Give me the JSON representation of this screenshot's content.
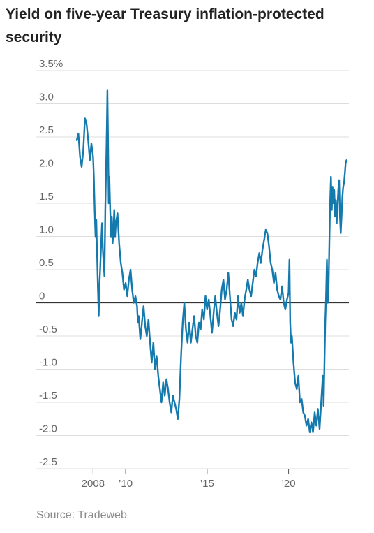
{
  "title": "Yield on five-year Treasury inflation-protected security",
  "source": "Source: Tradeweb",
  "colors": {
    "line": "#1479ad",
    "grid": "#dddddd",
    "zero": "#333333"
  },
  "chart_data": {
    "type": "line",
    "title": "Yield on five-year Treasury inflation-protected security",
    "xlabel": "",
    "ylabel": "",
    "xlim": [
      2006.4,
      2023.7
    ],
    "ylim": [
      -2.5,
      3.5
    ],
    "grid": true,
    "y_ticks": [
      {
        "value": 3.5,
        "label": "3.5%"
      },
      {
        "value": 3.0,
        "label": "3.0"
      },
      {
        "value": 2.5,
        "label": "2.5"
      },
      {
        "value": 2.0,
        "label": "2.0"
      },
      {
        "value": 1.5,
        "label": "1.5"
      },
      {
        "value": 1.0,
        "label": "1.0"
      },
      {
        "value": 0.5,
        "label": "0.5"
      },
      {
        "value": 0,
        "label": "0"
      },
      {
        "value": -0.5,
        "label": "-0.5"
      },
      {
        "value": -1.0,
        "label": "-1.0"
      },
      {
        "value": -1.5,
        "label": "-1.5"
      },
      {
        "value": -2.0,
        "label": "-2.0"
      },
      {
        "value": -2.5,
        "label": "-2.5"
      }
    ],
    "x_ticks": [
      {
        "value": 2008,
        "label": "2008"
      },
      {
        "value": 2010,
        "label": "’10"
      },
      {
        "value": 2015,
        "label": "’15"
      },
      {
        "value": 2020,
        "label": "’20"
      }
    ],
    "series": [
      {
        "points": [
          [
            2007.0,
            2.45
          ],
          [
            2007.1,
            2.55
          ],
          [
            2007.2,
            2.2
          ],
          [
            2007.3,
            2.05
          ],
          [
            2007.4,
            2.3
          ],
          [
            2007.5,
            2.78
          ],
          [
            2007.6,
            2.7
          ],
          [
            2007.7,
            2.45
          ],
          [
            2007.8,
            2.15
          ],
          [
            2007.9,
            2.4
          ],
          [
            2008.0,
            2.2
          ],
          [
            2008.05,
            1.9
          ],
          [
            2008.1,
            1.4
          ],
          [
            2008.15,
            1.0
          ],
          [
            2008.2,
            1.25
          ],
          [
            2008.25,
            0.7
          ],
          [
            2008.3,
            0.2
          ],
          [
            2008.35,
            -0.2
          ],
          [
            2008.4,
            0.3
          ],
          [
            2008.45,
            0.6
          ],
          [
            2008.5,
            0.9
          ],
          [
            2008.55,
            1.2
          ],
          [
            2008.6,
            0.8
          ],
          [
            2008.65,
            0.6
          ],
          [
            2008.7,
            0.4
          ],
          [
            2008.75,
            1.4
          ],
          [
            2008.8,
            2.0
          ],
          [
            2008.85,
            2.7
          ],
          [
            2008.88,
            3.2
          ],
          [
            2008.92,
            2.5
          ],
          [
            2008.96,
            1.5
          ],
          [
            2009.0,
            1.9
          ],
          [
            2009.05,
            1.4
          ],
          [
            2009.1,
            1.0
          ],
          [
            2009.15,
            1.3
          ],
          [
            2009.2,
            0.9
          ],
          [
            2009.25,
            1.1
          ],
          [
            2009.3,
            1.4
          ],
          [
            2009.35,
            1.0
          ],
          [
            2009.4,
            1.2
          ],
          [
            2009.5,
            1.35
          ],
          [
            2009.6,
            0.9
          ],
          [
            2009.7,
            0.6
          ],
          [
            2009.8,
            0.45
          ],
          [
            2009.9,
            0.2
          ],
          [
            2010.0,
            0.3
          ],
          [
            2010.1,
            0.1
          ],
          [
            2010.2,
            0.35
          ],
          [
            2010.3,
            0.5
          ],
          [
            2010.4,
            0.2
          ],
          [
            2010.5,
            0.0
          ],
          [
            2010.6,
            0.1
          ],
          [
            2010.7,
            -0.05
          ],
          [
            2010.75,
            -0.3
          ],
          [
            2010.8,
            -0.2
          ],
          [
            2010.9,
            -0.55
          ],
          [
            2011.0,
            -0.3
          ],
          [
            2011.1,
            -0.05
          ],
          [
            2011.2,
            -0.35
          ],
          [
            2011.3,
            -0.5
          ],
          [
            2011.4,
            -0.25
          ],
          [
            2011.5,
            -0.6
          ],
          [
            2011.6,
            -0.9
          ],
          [
            2011.7,
            -0.6
          ],
          [
            2011.8,
            -1.0
          ],
          [
            2011.9,
            -0.8
          ],
          [
            2012.0,
            -1.1
          ],
          [
            2012.1,
            -1.3
          ],
          [
            2012.2,
            -1.5
          ],
          [
            2012.3,
            -1.2
          ],
          [
            2012.4,
            -1.4
          ],
          [
            2012.5,
            -1.15
          ],
          [
            2012.6,
            -1.3
          ],
          [
            2012.7,
            -1.5
          ],
          [
            2012.8,
            -1.65
          ],
          [
            2012.9,
            -1.4
          ],
          [
            2013.0,
            -1.5
          ],
          [
            2013.1,
            -1.6
          ],
          [
            2013.2,
            -1.75
          ],
          [
            2013.3,
            -1.45
          ],
          [
            2013.4,
            -0.8
          ],
          [
            2013.5,
            -0.3
          ],
          [
            2013.6,
            0.0
          ],
          [
            2013.7,
            -0.4
          ],
          [
            2013.8,
            -0.6
          ],
          [
            2013.9,
            -0.3
          ],
          [
            2014.0,
            -0.6
          ],
          [
            2014.1,
            -0.4
          ],
          [
            2014.2,
            -0.2
          ],
          [
            2014.3,
            -0.5
          ],
          [
            2014.4,
            -0.6
          ],
          [
            2014.5,
            -0.3
          ],
          [
            2014.6,
            -0.4
          ],
          [
            2014.7,
            -0.1
          ],
          [
            2014.8,
            -0.25
          ],
          [
            2014.9,
            0.1
          ],
          [
            2015.0,
            -0.1
          ],
          [
            2015.1,
            0.05
          ],
          [
            2015.2,
            -0.2
          ],
          [
            2015.3,
            -0.45
          ],
          [
            2015.4,
            -0.15
          ],
          [
            2015.5,
            0.1
          ],
          [
            2015.6,
            -0.15
          ],
          [
            2015.7,
            -0.35
          ],
          [
            2015.8,
            -0.1
          ],
          [
            2015.9,
            0.2
          ],
          [
            2016.0,
            0.35
          ],
          [
            2016.1,
            0.05
          ],
          [
            2016.2,
            0.2
          ],
          [
            2016.3,
            0.45
          ],
          [
            2016.4,
            0.1
          ],
          [
            2016.5,
            -0.25
          ],
          [
            2016.6,
            -0.35
          ],
          [
            2016.7,
            -0.15
          ],
          [
            2016.8,
            -0.25
          ],
          [
            2016.9,
            0.1
          ],
          [
            2017.0,
            -0.15
          ],
          [
            2017.1,
            0.0
          ],
          [
            2017.2,
            -0.2
          ],
          [
            2017.3,
            0.05
          ],
          [
            2017.4,
            0.2
          ],
          [
            2017.5,
            0.35
          ],
          [
            2017.6,
            0.2
          ],
          [
            2017.7,
            0.1
          ],
          [
            2017.8,
            0.3
          ],
          [
            2017.9,
            0.5
          ],
          [
            2018.0,
            0.4
          ],
          [
            2018.1,
            0.6
          ],
          [
            2018.2,
            0.75
          ],
          [
            2018.3,
            0.6
          ],
          [
            2018.4,
            0.8
          ],
          [
            2018.5,
            0.95
          ],
          [
            2018.6,
            1.1
          ],
          [
            2018.7,
            1.05
          ],
          [
            2018.8,
            0.85
          ],
          [
            2018.9,
            0.6
          ],
          [
            2019.0,
            0.5
          ],
          [
            2019.1,
            0.3
          ],
          [
            2019.2,
            0.45
          ],
          [
            2019.3,
            0.2
          ],
          [
            2019.4,
            0.1
          ],
          [
            2019.5,
            0.05
          ],
          [
            2019.6,
            0.25
          ],
          [
            2019.7,
            0.0
          ],
          [
            2019.8,
            -0.1
          ],
          [
            2019.9,
            0.05
          ],
          [
            2020.0,
            0.15
          ],
          [
            2020.05,
            0.65
          ],
          [
            2020.1,
            -0.3
          ],
          [
            2020.15,
            -0.6
          ],
          [
            2020.2,
            -0.5
          ],
          [
            2020.3,
            -0.9
          ],
          [
            2020.4,
            -1.2
          ],
          [
            2020.5,
            -1.3
          ],
          [
            2020.6,
            -1.1
          ],
          [
            2020.7,
            -1.5
          ],
          [
            2020.8,
            -1.45
          ],
          [
            2020.9,
            -1.65
          ],
          [
            2021.0,
            -1.7
          ],
          [
            2021.1,
            -1.85
          ],
          [
            2021.2,
            -1.75
          ],
          [
            2021.3,
            -1.95
          ],
          [
            2021.4,
            -1.8
          ],
          [
            2021.5,
            -1.95
          ],
          [
            2021.6,
            -1.65
          ],
          [
            2021.7,
            -1.85
          ],
          [
            2021.8,
            -1.6
          ],
          [
            2021.9,
            -1.9
          ],
          [
            2022.0,
            -1.5
          ],
          [
            2022.1,
            -1.1
          ],
          [
            2022.15,
            -1.55
          ],
          [
            2022.2,
            -0.9
          ],
          [
            2022.25,
            -0.3
          ],
          [
            2022.3,
            0.1
          ],
          [
            2022.35,
            0.65
          ],
          [
            2022.4,
            0.0
          ],
          [
            2022.45,
            0.2
          ],
          [
            2022.5,
            0.9
          ],
          [
            2022.55,
            1.5
          ],
          [
            2022.6,
            1.9
          ],
          [
            2022.65,
            1.4
          ],
          [
            2022.7,
            1.75
          ],
          [
            2022.75,
            1.5
          ],
          [
            2022.8,
            1.7
          ],
          [
            2022.85,
            1.3
          ],
          [
            2022.9,
            1.55
          ],
          [
            2022.95,
            1.2
          ],
          [
            2023.0,
            1.45
          ],
          [
            2023.05,
            1.7
          ],
          [
            2023.1,
            1.85
          ],
          [
            2023.15,
            1.3
          ],
          [
            2023.2,
            1.05
          ],
          [
            2023.25,
            1.3
          ],
          [
            2023.3,
            1.6
          ],
          [
            2023.35,
            1.75
          ],
          [
            2023.4,
            1.8
          ],
          [
            2023.45,
            1.95
          ],
          [
            2023.5,
            2.1
          ],
          [
            2023.55,
            2.15
          ]
        ]
      }
    ]
  }
}
